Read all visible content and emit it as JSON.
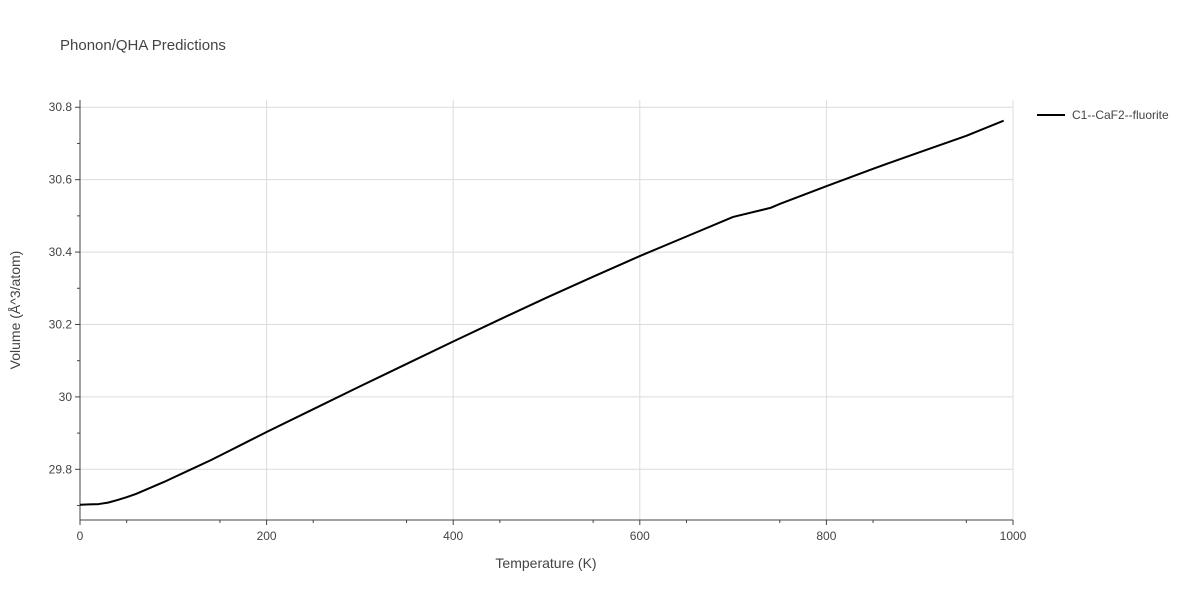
{
  "chart_data": {
    "type": "line",
    "title": "Phonon/QHA Predictions",
    "xlabel": "Temperature (K)",
    "ylabel": "Volume (Å^3/atom)",
    "xlim": [
      0,
      1000
    ],
    "ylim": [
      29.66,
      30.82
    ],
    "xticks": [
      0,
      200,
      400,
      600,
      800,
      1000
    ],
    "xtick_labels": [
      "0",
      "200",
      "400",
      "600",
      "800",
      "1000"
    ],
    "yticks": [
      29.8,
      30.0,
      30.2,
      30.4,
      30.6,
      30.8
    ],
    "ytick_labels": [
      "29.8",
      "30",
      "30.2",
      "30.4",
      "30.6",
      "30.8"
    ],
    "grid": true,
    "legend_position": "top-right",
    "series": [
      {
        "name": "C1--CaF2--fluorite",
        "color": "#000000",
        "x": [
          0,
          10,
          20,
          30,
          40,
          50,
          60,
          70,
          80,
          90,
          100,
          120,
          140,
          160,
          180,
          200,
          250,
          300,
          350,
          400,
          450,
          500,
          550,
          600,
          650,
          700,
          740,
          750,
          800,
          850,
          900,
          950,
          990
        ],
        "y": [
          29.702,
          29.703,
          29.704,
          29.708,
          29.715,
          29.723,
          29.732,
          29.743,
          29.754,
          29.765,
          29.777,
          29.801,
          29.825,
          29.851,
          29.877,
          29.903,
          29.966,
          30.029,
          30.091,
          30.153,
          30.214,
          30.274,
          30.332,
          30.389,
          30.443,
          30.497,
          30.522,
          30.533,
          30.582,
          30.63,
          30.676,
          30.721,
          30.763
        ]
      }
    ]
  }
}
